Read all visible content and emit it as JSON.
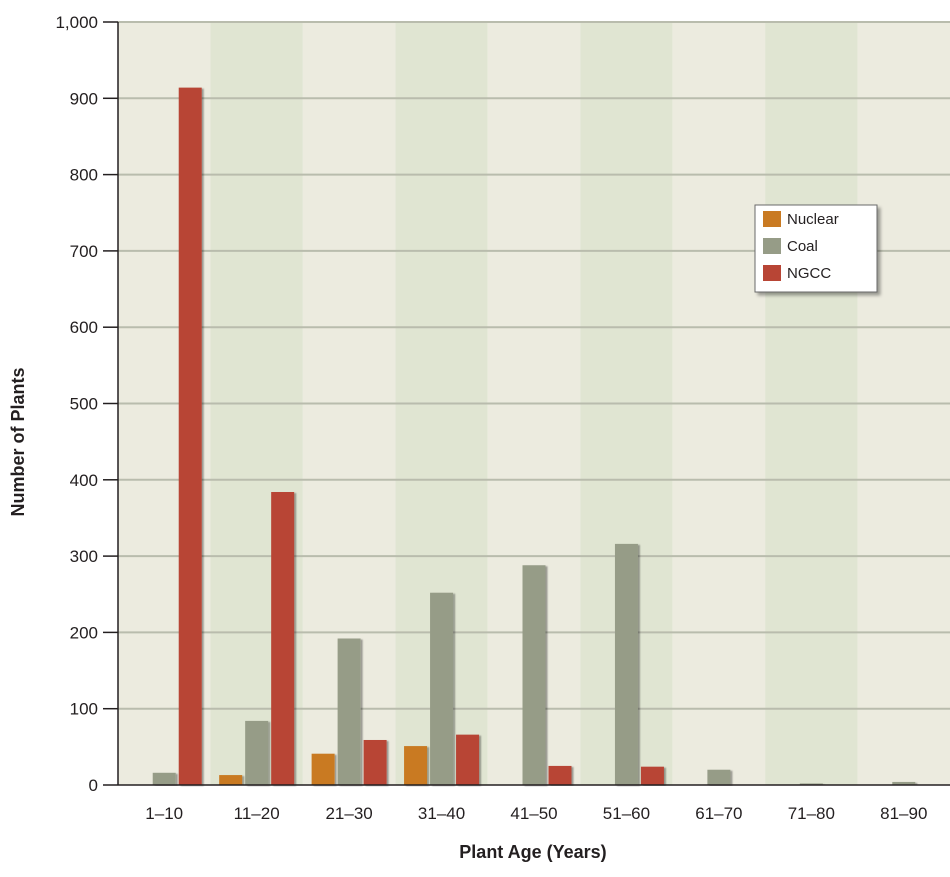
{
  "chart_data": {
    "type": "bar",
    "title": "",
    "xlabel": "Plant Age (Years)",
    "ylabel": "Number of Plants",
    "categories": [
      "1–10",
      "11–20",
      "21–30",
      "31–40",
      "41–50",
      "51–60",
      "61–70",
      "71–80",
      "81–90"
    ],
    "series": [
      {
        "name": "Nuclear",
        "color": "#c97a22",
        "values": [
          0,
          13,
          41,
          51,
          0,
          0,
          0,
          0,
          0
        ]
      },
      {
        "name": "Coal",
        "color": "#969c87",
        "values": [
          16,
          84,
          192,
          252,
          288,
          316,
          20,
          2,
          4
        ]
      },
      {
        "name": "NGCC",
        "color": "#b84535",
        "values": [
          914,
          384,
          59,
          66,
          25,
          24,
          0,
          0,
          0
        ]
      }
    ],
    "ylim": [
      0,
      1000
    ],
    "yticks": [
      0,
      100,
      200,
      300,
      400,
      500,
      600,
      700,
      800,
      900,
      1000
    ],
    "ytick_labels": [
      "0",
      "100",
      "200",
      "300",
      "400",
      "500",
      "600",
      "700",
      "800",
      "900",
      "1,000"
    ],
    "grid": true,
    "legend_position": "top-right",
    "colors": {
      "plot_background_light": "#ecebdf",
      "plot_background_dark": "#e0e5d2",
      "gridline": "#b9bcad",
      "axis": "#231f20"
    }
  }
}
